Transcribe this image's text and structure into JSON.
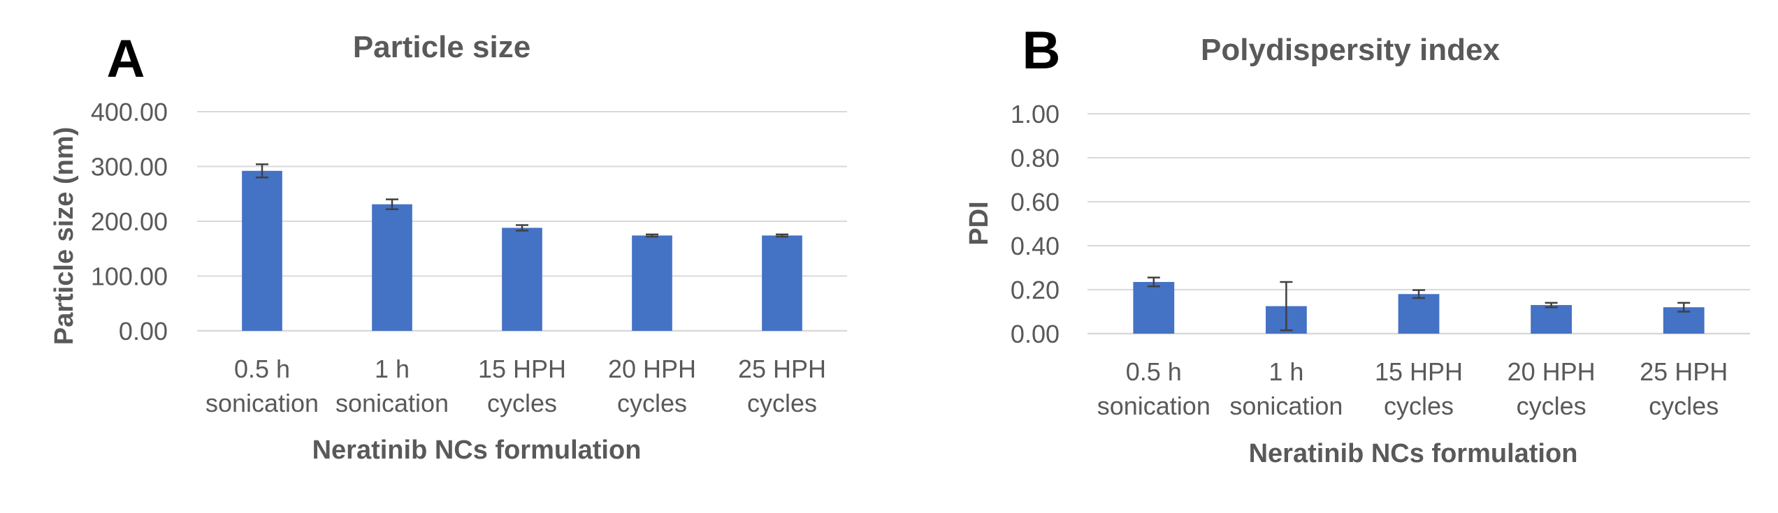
{
  "colors": {
    "bar": "#4472C4",
    "grid": "#D9D9D9",
    "axis_text": "#595959",
    "title_text": "#595959",
    "panel_letter": "#000000",
    "error_bar": "#404040"
  },
  "chart_data": [
    {
      "panel_label": "A",
      "type": "bar",
      "title": "Particle size",
      "xlabel": "Neratinib NCs formulation",
      "ylabel": "Particle size (nm)",
      "ylim": [
        0,
        400
      ],
      "yticks": [
        0,
        100,
        200,
        300,
        400
      ],
      "ytick_labels": [
        "0.00",
        "100.00",
        "200.00",
        "300.00",
        "400.00"
      ],
      "grid": true,
      "categories": [
        [
          "0.5 h",
          "sonication"
        ],
        [
          "1 h",
          "sonication"
        ],
        [
          "15 HPH",
          "cycles"
        ],
        [
          "20 HPH",
          "cycles"
        ],
        [
          "25 HPH",
          "cycles"
        ]
      ],
      "values": [
        292,
        231,
        188,
        174,
        174
      ],
      "errors": [
        12,
        9,
        5,
        2,
        2
      ]
    },
    {
      "panel_label": "B",
      "type": "bar",
      "title": "Polydispersity index",
      "xlabel": "Neratinib NCs formulation",
      "ylabel": "PDI",
      "ylim": [
        0,
        1.0
      ],
      "yticks": [
        0,
        0.2,
        0.4,
        0.6,
        0.8,
        1.0
      ],
      "ytick_labels": [
        "0.00",
        "0.20",
        "0.40",
        "0.60",
        "0.80",
        "1.00"
      ],
      "grid": true,
      "categories": [
        [
          "0.5 h",
          "sonication"
        ],
        [
          "1 h",
          "sonication"
        ],
        [
          "15 HPH",
          "cycles"
        ],
        [
          "20 HPH",
          "cycles"
        ],
        [
          "25 HPH",
          "cycles"
        ]
      ],
      "values": [
        0.235,
        0.125,
        0.18,
        0.13,
        0.12
      ],
      "errors": [
        0.02,
        0.11,
        0.018,
        0.01,
        0.02
      ]
    }
  ]
}
